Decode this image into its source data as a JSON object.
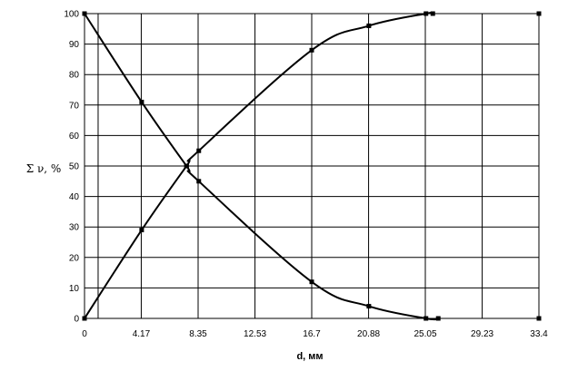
{
  "chart_data": {
    "type": "line",
    "xlabel": "d, мм",
    "ylabel": "Σ ν, %",
    "x_ticks": [
      0,
      4.17,
      8.35,
      12.53,
      16.7,
      20.88,
      25.05,
      29.23,
      33.4
    ],
    "x_minor_gridlines": [
      1.0
    ],
    "y_ticks": [
      0,
      10,
      20,
      30,
      40,
      50,
      60,
      70,
      80,
      90,
      100
    ],
    "xlim": [
      0,
      33.4
    ],
    "ylim": [
      0,
      100
    ],
    "grid": true,
    "legend": "none",
    "series": [
      {
        "points": [
          [
            0,
            0
          ],
          [
            4.2,
            29
          ],
          [
            7.5,
            50
          ],
          [
            8.4,
            55
          ],
          [
            16.7,
            88
          ],
          [
            20.9,
            96
          ],
          [
            25.1,
            100
          ],
          [
            25.6,
            100
          ]
        ]
      },
      {
        "points": [
          [
            0,
            100
          ],
          [
            4.2,
            71
          ],
          [
            7.5,
            50
          ],
          [
            8.4,
            45
          ],
          [
            16.7,
            12
          ],
          [
            20.9,
            4
          ],
          [
            25.1,
            0
          ],
          [
            26.0,
            0
          ]
        ]
      },
      {
        "points": [
          [
            33.4,
            100
          ],
          [
            33.4,
            0
          ]
        ],
        "markers_only": true
      }
    ]
  }
}
